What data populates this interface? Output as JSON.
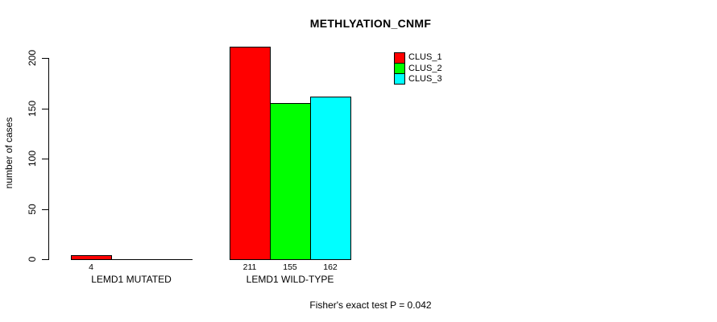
{
  "chart_data": {
    "type": "bar",
    "title": "METHLYATION_CNMF",
    "ylabel": "number of cases",
    "xlabel": "",
    "yticks": [
      0,
      50,
      100,
      150,
      200
    ],
    "ylim": [
      0,
      211
    ],
    "grid": false,
    "legend_position": "top-right",
    "bar_border_color": "#000000",
    "categories": [
      "LEMD1 MUTATED",
      "LEMD1 WILD-TYPE"
    ],
    "series": [
      {
        "name": "CLUS_1",
        "color": "#ff0000",
        "values": [
          4,
          211
        ]
      },
      {
        "name": "CLUS_2",
        "color": "#00ff00",
        "values": [
          0,
          155
        ]
      },
      {
        "name": "CLUS_3",
        "color": "#00ffff",
        "values": [
          0,
          162
        ]
      }
    ],
    "value_labels_shown": [
      [
        "4"
      ],
      [
        "211",
        "155",
        "162"
      ]
    ],
    "annotation": "Fisher's exact test P = 0.042"
  }
}
